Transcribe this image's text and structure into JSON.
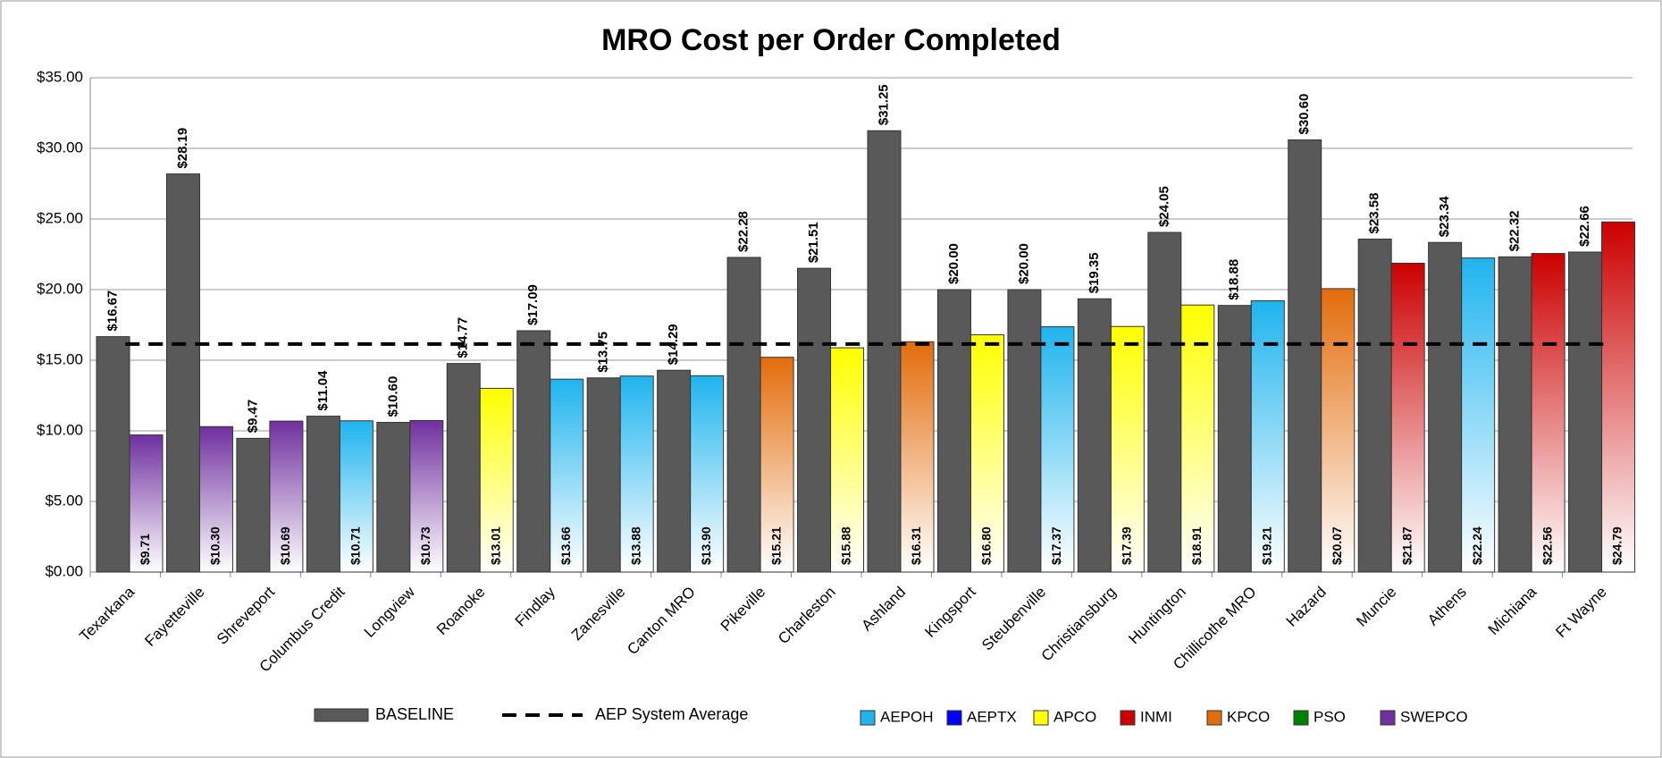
{
  "chart_data": {
    "type": "bar",
    "title": "MRO Cost per Order Completed",
    "categories": [
      "Texarkana",
      "Fayetteville",
      "Shreveport",
      "Columbus Credit",
      "Longview",
      "Roanoke",
      "Findlay",
      "Zanesville",
      "Canton MRO",
      "Pikeville",
      "Charleston",
      "Ashland",
      "Kingsport",
      "Steubenville",
      "Christiansburg",
      "Huntington",
      "Chillicothe MRO",
      "Hazard",
      "Muncie",
      "Athens",
      "Michiana",
      "Ft Wayne"
    ],
    "ylim": [
      0,
      35
    ],
    "yticks": [
      {
        "value": 0,
        "label": "$0.00"
      },
      {
        "value": 5,
        "label": "$5.00"
      },
      {
        "value": 10,
        "label": "$10.00"
      },
      {
        "value": 15,
        "label": "$15.00"
      },
      {
        "value": 20,
        "label": "$20.00"
      },
      {
        "value": 25,
        "label": "$25.00"
      },
      {
        "value": 30,
        "label": "$30.00"
      },
      {
        "value": 35,
        "label": "$35.00"
      }
    ],
    "grid": true,
    "baseline": {
      "name": "BASELINE",
      "color": "#595959",
      "values": [
        16.67,
        28.19,
        9.47,
        11.04,
        10.6,
        14.77,
        17.09,
        13.75,
        14.29,
        22.28,
        21.51,
        31.25,
        20.0,
        20.0,
        19.35,
        24.05,
        18.88,
        30.6,
        23.58,
        23.34,
        22.32,
        22.66
      ],
      "value_labels": [
        "$16.67",
        "$28.19",
        "$9.47",
        "$11.04",
        "$10.60",
        "$14.77",
        "$17.09",
        "$13.75",
        "$14.29",
        "$22.28",
        "$21.51",
        "$31.25",
        "$20.00",
        "$20.00",
        "$19.35",
        "$24.05",
        "$18.88",
        "$30.60",
        "$23.58",
        "$23.34",
        "$22.32",
        "$22.66"
      ]
    },
    "average": {
      "name": "AEP System Average",
      "value": 16.15
    },
    "series": [
      {
        "name": "AEPOH",
        "color": "#1fb4ee",
        "values": [
          null,
          null,
          null,
          10.71,
          null,
          null,
          13.66,
          13.88,
          13.9,
          null,
          null,
          null,
          null,
          17.37,
          null,
          null,
          19.21,
          null,
          null,
          22.24,
          null,
          null
        ],
        "value_labels": [
          null,
          null,
          null,
          "$10.71",
          null,
          null,
          "$13.66",
          "$13.88",
          "$13.90",
          null,
          null,
          null,
          null,
          "$17.37",
          null,
          null,
          "$19.21",
          null,
          null,
          "$22.24",
          null,
          null
        ]
      },
      {
        "name": "AEPTX",
        "color": "#0000ff",
        "values": [
          null,
          null,
          null,
          null,
          null,
          null,
          null,
          null,
          null,
          null,
          null,
          null,
          null,
          null,
          null,
          null,
          null,
          null,
          null,
          null,
          null,
          null
        ],
        "value_labels": [
          null,
          null,
          null,
          null,
          null,
          null,
          null,
          null,
          null,
          null,
          null,
          null,
          null,
          null,
          null,
          null,
          null,
          null,
          null,
          null,
          null,
          null
        ]
      },
      {
        "name": "APCO",
        "color": "#ffff00",
        "values": [
          null,
          null,
          null,
          null,
          null,
          13.01,
          null,
          null,
          null,
          null,
          15.88,
          null,
          16.8,
          null,
          17.39,
          18.91,
          null,
          null,
          null,
          null,
          null,
          null
        ],
        "value_labels": [
          null,
          null,
          null,
          null,
          null,
          "$13.01",
          null,
          null,
          null,
          null,
          "$15.88",
          null,
          "$16.80",
          null,
          "$17.39",
          "$18.91",
          null,
          null,
          null,
          null,
          null,
          null
        ]
      },
      {
        "name": "INMI",
        "color": "#cc0000",
        "values": [
          null,
          null,
          null,
          null,
          null,
          null,
          null,
          null,
          null,
          null,
          null,
          null,
          null,
          null,
          null,
          null,
          null,
          null,
          21.87,
          null,
          22.56,
          24.79
        ],
        "value_labels": [
          null,
          null,
          null,
          null,
          null,
          null,
          null,
          null,
          null,
          null,
          null,
          null,
          null,
          null,
          null,
          null,
          null,
          null,
          "$21.87",
          null,
          "$22.56",
          "$24.79"
        ]
      },
      {
        "name": "KPCO",
        "color": "#e36c0a",
        "values": [
          null,
          null,
          null,
          null,
          null,
          null,
          null,
          null,
          null,
          15.21,
          null,
          16.31,
          null,
          null,
          null,
          null,
          null,
          20.07,
          null,
          null,
          null,
          null
        ],
        "value_labels": [
          null,
          null,
          null,
          null,
          null,
          null,
          null,
          null,
          null,
          "$15.21",
          null,
          "$16.31",
          null,
          null,
          null,
          null,
          null,
          "$20.07",
          null,
          null,
          null,
          null
        ]
      },
      {
        "name": "PSO",
        "color": "#008000",
        "values": [
          null,
          null,
          null,
          null,
          null,
          null,
          null,
          null,
          null,
          null,
          null,
          null,
          null,
          null,
          null,
          null,
          null,
          null,
          null,
          null,
          null,
          null
        ],
        "value_labels": [
          null,
          null,
          null,
          null,
          null,
          null,
          null,
          null,
          null,
          null,
          null,
          null,
          null,
          null,
          null,
          null,
          null,
          null,
          null,
          null,
          null,
          null
        ]
      },
      {
        "name": "SWEPCO",
        "color": "#7030a0",
        "values": [
          9.71,
          10.3,
          10.69,
          null,
          10.73,
          null,
          null,
          null,
          null,
          null,
          null,
          null,
          null,
          null,
          null,
          null,
          null,
          null,
          null,
          null,
          null,
          null
        ],
        "value_labels": [
          "$9.71",
          "$10.30",
          "$10.69",
          null,
          "$10.73",
          null,
          null,
          null,
          null,
          null,
          null,
          null,
          null,
          null,
          null,
          null,
          null,
          null,
          null,
          null,
          null,
          null
        ]
      }
    ]
  }
}
